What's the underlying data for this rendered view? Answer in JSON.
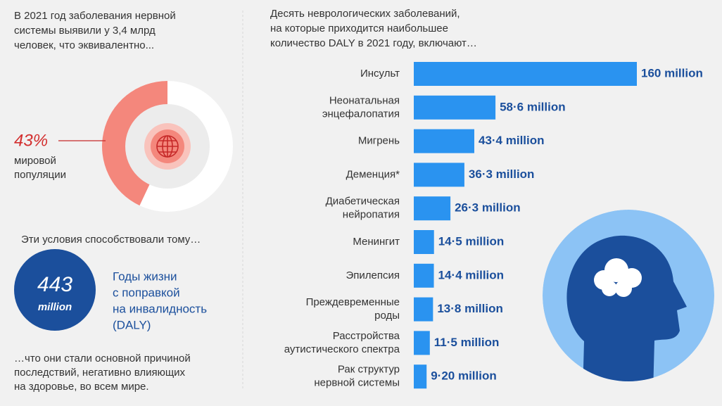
{
  "intro": [
    "В 2021 год заболевания нервной",
    "системы выявили у 3,4 млрд",
    "человек, что эквивалентно..."
  ],
  "chart_data": [
    {
      "type": "pie",
      "values": [
        43
      ],
      "value_labels": [
        "43%"
      ],
      "label": [
        "мировой",
        "популяции"
      ],
      "colors": [
        "#f4877c"
      ]
    },
    {
      "type": "bar",
      "title": [
        "Десять неврологических заболеваний,",
        "на которые приходится наибольшее",
        "количество DALY в 2021 году, включают…"
      ],
      "categories": [
        [
          "Инсульт"
        ],
        [
          "Неонатальная",
          "энцефалопатия"
        ],
        [
          "Мигрень"
        ],
        [
          "Деменция*"
        ],
        [
          "Диабетическая",
          "нейропатия"
        ],
        [
          "Менингит"
        ],
        [
          "Эпилепсия"
        ],
        [
          "Преждевременные",
          "роды"
        ],
        [
          "Расстройства",
          "аутистического спектра"
        ],
        [
          "Рак структур",
          "нервной системы"
        ]
      ],
      "values": [
        160,
        58.6,
        43.4,
        36.3,
        26.3,
        14.5,
        14.4,
        13.8,
        11.5,
        9.2
      ],
      "value_labels": [
        "160 million",
        "58·6 million",
        "43·4 million",
        "36·3 million",
        "26·3 million",
        "14·5 million",
        "14·4 million",
        "13·8 million",
        "11·5 million",
        "9·20 million"
      ],
      "color": "#2a93f0"
    }
  ],
  "conditions": "Эти условия способствовали тому…",
  "daly": {
    "number": "443",
    "unit": "million",
    "label": [
      "Годы жизни",
      "с поправкой",
      "на инвалидность",
      "(DALY)"
    ]
  },
  "conclusion": [
    "…что они стали основной причиной",
    "последствий, негативно влияющих",
    "на здоровье, во всем мире."
  ]
}
